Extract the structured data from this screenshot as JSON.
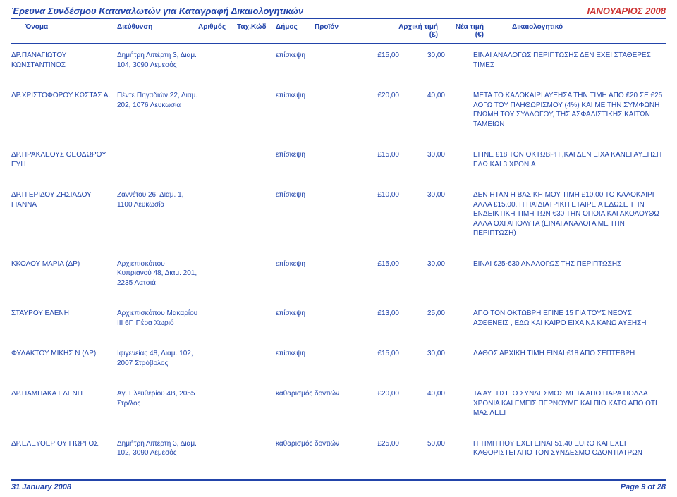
{
  "report": {
    "title": "Έρευνα Συνδέσμου Καταναλωτών για Καταγραφή Δικαιολογητικών",
    "period": "ΙΑΝΟΥΑΡΙΟΣ 2008",
    "footer_date": "31 January 2008",
    "footer_page": "Page 9 of 28"
  },
  "headers": {
    "name": "Όνομα",
    "address": "Διεύθυνση",
    "number": "Αριθμός",
    "tk": "Ταχ.Κώδ",
    "dimos": "Δήμος",
    "product": "Προϊόν",
    "price_old": "Αρχική τιμή (£)",
    "price_new": "Νέα τιμή (€)",
    "justification": "Δικαιολογητικό"
  },
  "rows": [
    {
      "name": "ΔΡ.ΠΑΝΑΓΙΩΤΟΥ ΚΩΝΣΤΑΝΤΙΝΟΣ",
      "address": "Δημήτρη Λιπέρτη 3, Διαμ. 104, 3090 Λεμεσός",
      "product": "επίσκεψη",
      "old": "£15,00",
      "new": "30,00",
      "just": "ΕΙΝΑΙ ΑΝΑΛΟΓΩΣ ΠΕΡΙΠΤΩΣΗΣ ΔΕΝ ΕΧΕΙ ΣΤΑΘΕΡΕΣ ΤΙΜΕΣ"
    },
    {
      "name": "ΔΡ.ΧΡΙΣΤΟΦΟΡΟΥ ΚΩΣΤΑΣ Α.",
      "address": "Πέντε Πηγαδιών 22, Διαμ. 202, 1076 Λευκωσία",
      "product": "επίσκεψη",
      "old": "£20,00",
      "new": "40,00",
      "just": "ΜΕΤΑ ΤΟ ΚΑΛΟΚΑΙΡΙ ΑΥΞΗΣΑ ΤΗΝ ΤΙΜΗ ΑΠΟ £20 ΣΕ £25 ΛΟΓΩ ΤΟΥ ΠΛΗΘΩΡΙΣΜΟΥ (4%) ΚΑΙ ΜΕ ΤΗΝ ΣΥΜΦΩΝΗ ΓΝΩΜΗ ΤΟΥ ΣΥΛΛΟΓΟΥ, ΤΗΣ ΑΣΦΑΛΙΣΤΙΚΗΣ ΚΑΙΤΩΝ ΤΑΜΕΙΩΝ"
    },
    {
      "name": "ΔΡ.ΗΡΑΚΛΕΟΥΣ ΘΕΟΔΩΡΟΥ ΕΥΗ",
      "address": "",
      "product": "επίσκεψη",
      "old": "£15,00",
      "new": "30,00",
      "just": "ΕΓΙΝΕ £18 ΤΟΝ ΟΚΤΩΒΡΗ ,ΚΑΙ ΔΕΝ ΕΙΧΑ ΚΑΝΕΙ ΑΥΞΗΣΗ ΕΔΩ ΚΑΙ 3 ΧΡΟΝΙΑ"
    },
    {
      "name": "ΔΡ.ΠΙΕΡΙΔΟΥ ΖΗΣΙΑΔΟΥ ΓΙΑΝΝΑ",
      "address": "Ζαννέτου 26, Διαμ. 1, 1100 Λευκωσία",
      "product": "επίσκεψη",
      "old": "£10,00",
      "new": "30,00",
      "just": "ΔΕΝ ΗΤΑΝ Η ΒΑΣΙΚΗ ΜΟΥ ΤΙΜΗ £10.00 ΤΟ ΚΑΛΟΚΑΙΡΙ ΑΛΛΑ £15.00. Η ΠΑΙΔΙΑΤΡΙΚΗ ΕΤΑΙΡΕΙΑ ΕΔΩΣΕ ΤΗΝ ΕΝΔΕΙΚΤΙΚΗ ΤΙΜΗ ΤΩΝ €30 ΤΗΝ ΟΠΟΙΑ ΚΑΙ ΑΚΟΛΟΥΘΩ ΑΛΛΑ ΟΧΙ ΑΠΟΛΥΤΑ (ΕΙΝΑΙ ΑΝΑΛΟΓΑ ΜΕ ΤΗΝ ΠΕΡΙΠΤΩΣΗ)"
    },
    {
      "name": "ΚΚΟΛΟΥ ΜΑΡΙΑ (ΔΡ)",
      "address": "Αρχιεπισκόπου Κυπριανού 48, Διαμ. 201, 2235 Λατσιά",
      "product": "επίσκεψη",
      "old": "£15,00",
      "new": "30,00",
      "just": "ΕΙΝΑΙ €25-€30 ΑΝΑΛΟΓΩΣ ΤΗΣ ΠΕΡΙΠΤΩΣΗΣ"
    },
    {
      "name": "ΣΤΑΥΡΟΥ ΕΛΕΝΗ",
      "address": "Αρχιεπισκόπου Μακαρίου ΙΙΙ 6Γ, Πέρα Χωριό",
      "product": "επίσκεψη",
      "old": "£13,00",
      "new": "25,00",
      "just": "ΑΠΟ ΤΟΝ ΟΚΤΩΒΡΗ  ΕΓΙΝΕ 15 ΓΙΑ ΤΟΥΣ ΝΕΟΥΣ ΑΣΘΕΝΕΙΣ , ΕΔΩ ΚΑΙ ΚΑΙΡΟ ΕΙΧΑ ΝΑ ΚΑΝΩ ΑΥΞΗΣΗ"
    },
    {
      "name": "ΦΥΛΑΚΤΟΥ ΜΙΚΗΣ Ν (ΔΡ)",
      "address": "Ιφιγενείας 48, Διαμ. 102, 2007 Στρόβολος",
      "product": "επίσκεψη",
      "old": "£15,00",
      "new": "30,00",
      "just": "ΛΑΘΟΣ ΑΡΧΙΚΗ ΤΙΜΗ ΕΙΝΑΙ £18 ΑΠΟ ΣΕΠΤΕΒΡΗ"
    },
    {
      "name": "ΔΡ.ΠΑΜΠΑΚΑ ΕΛΕΝΗ",
      "address": "Αγ. Ελευθερίου 4Β, 2055 Στρ/λος",
      "product": "καθαρισμός δοντιών",
      "old": "£20,00",
      "new": "40,00",
      "just": "ΤΑ ΑΥΞΗΣΕ Ο ΣΥΝΔΕΣΜΟΣ ΜΕΤΑ ΑΠΟ ΠΑΡΑ ΠΟΛΛΑ ΧΡΟΝΙΑ ΚΑΙ ΕΜΕΙΣ ΠΕΡΝΟΥΜΕ ΚΑΙ ΠΙΟ ΚΑΤΩ ΑΠΟ ΟΤΙ ΜΑΣ ΛΕΕΙ"
    },
    {
      "name": "ΔΡ.ΕΛΕΥΘΕΡΙΟΥ ΓΙΩΡΓΟΣ",
      "address": "Δημήτρη Λιπέρτη 3, Διαμ. 102, 3090 Λεμεσός",
      "product": "καθαρισμός δοντιών",
      "old": "£25,00",
      "new": "50,00",
      "just": "Η ΤΙΜΗ ΠΟΥ ΕΧΕΙ ΕΙΝΑΙ 51.40 EURO ΚΑΙ ΕΧΕΙ ΚΑΘΟΡΙΣΤΕΙ ΑΠΟ ΤΟΝ ΣΥΝΔΕΣΜΟ ΟΔΟΝΤΙΑΤΡΩΝ"
    }
  ]
}
